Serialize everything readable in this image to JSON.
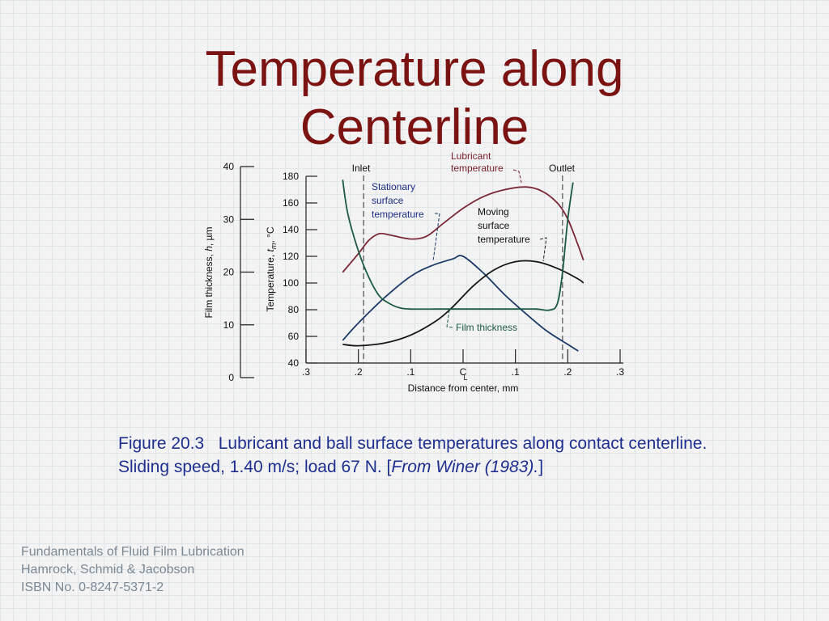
{
  "title": {
    "line1": "Temperature along",
    "line2": "Centerline"
  },
  "caption": {
    "figure_number": "Figure 20.3",
    "text": "Lubricant and ball surface temperatures along contact centerline. Sliding speed, 1.40 m/s; load 67 N. [",
    "source": "From Winer (1983).",
    "text_end": "]"
  },
  "footer": {
    "line1": "Fundamentals of Fluid Film Lubrication",
    "line2": "Hamrock, Schmid & Jacobson",
    "line3": "ISBN No. 0-8247-5371-2"
  },
  "colors": {
    "title": "#7b1313",
    "caption": "#1f2f8f",
    "footer": "#7b8894",
    "lubricant": "#7a2a36",
    "stationary": "#1d3b66",
    "moving": "#161616",
    "film": "#1d5a44",
    "label_blue": "#1d2f88",
    "label_red": "#7a1f2a",
    "label_green": "#1d5a44"
  },
  "chart_data": {
    "type": "line",
    "xlabel": "Distance from center,  mm",
    "x_tick_labels": [
      ".3",
      ".2",
      ".1",
      "C",
      ".1",
      ".2",
      ".3"
    ],
    "x_ticks": [
      -0.3,
      -0.2,
      -0.1,
      0,
      0.1,
      0.2,
      0.3
    ],
    "centerline_subscript": "L",
    "xlim": [
      -0.3,
      0.3
    ],
    "left_axis": {
      "label_parts": [
        "Film thickness,  ",
        "h",
        ",  µm"
      ],
      "ylim": [
        0,
        40
      ],
      "ticks": [
        0,
        10,
        20,
        30,
        40
      ]
    },
    "right_axis": {
      "label_parts": [
        "Temperature,  ",
        "t",
        "m",
        ",  °C"
      ],
      "ylim": [
        40,
        180
      ],
      "ticks": [
        40,
        60,
        80,
        100,
        120,
        140,
        160,
        180
      ]
    },
    "annotations": {
      "inlet": "Inlet",
      "outlet": "Outlet",
      "lubricant": [
        "Lubricant",
        "temperature"
      ],
      "stationary": [
        "Stationary",
        "surface",
        "temperature"
      ],
      "moving": [
        "Moving",
        "surface",
        "temperature"
      ],
      "film": "Film thickness"
    },
    "inlet_x": -0.19,
    "outlet_x": 0.19,
    "series": [
      {
        "key": "lubricant",
        "axis": "temperature",
        "x": [
          -0.23,
          -0.2,
          -0.18,
          -0.16,
          -0.14,
          -0.1,
          -0.07,
          -0.04,
          0,
          0.04,
          0.08,
          0.12,
          0.15,
          0.18,
          0.2,
          0.22,
          0.23
        ],
        "y": [
          108,
          122,
          132,
          137,
          136,
          133,
          135,
          144,
          156,
          165,
          170,
          172,
          169,
          160,
          148,
          128,
          117
        ]
      },
      {
        "key": "stationary",
        "axis": "temperature",
        "x": [
          -0.23,
          -0.2,
          -0.15,
          -0.1,
          -0.06,
          -0.02,
          0,
          0.04,
          0.08,
          0.12,
          0.16,
          0.2,
          0.22
        ],
        "y": [
          57,
          70,
          89,
          105,
          113,
          118,
          120,
          107,
          91,
          77,
          64,
          54,
          49
        ]
      },
      {
        "key": "moving",
        "axis": "temperature",
        "x": [
          -0.23,
          -0.2,
          -0.15,
          -0.1,
          -0.05,
          -0.02,
          0.02,
          0.06,
          0.1,
          0.14,
          0.18,
          0.22,
          0.23
        ],
        "y": [
          54,
          53,
          55,
          61,
          72,
          82,
          98,
          110,
          116,
          116,
          111,
          103,
          100
        ]
      },
      {
        "key": "film",
        "axis": "film",
        "x": [
          -0.23,
          -0.22,
          -0.2,
          -0.18,
          -0.16,
          -0.14,
          -0.12,
          -0.1,
          -0.05,
          0,
          0.05,
          0.1,
          0.14,
          0.165,
          0.18,
          0.19,
          0.2,
          0.21
        ],
        "y": [
          37.5,
          31,
          24,
          19,
          15.5,
          14,
          13.2,
          13,
          13,
          13,
          13,
          13,
          13,
          12.8,
          14,
          20,
          30,
          37
        ]
      }
    ]
  }
}
